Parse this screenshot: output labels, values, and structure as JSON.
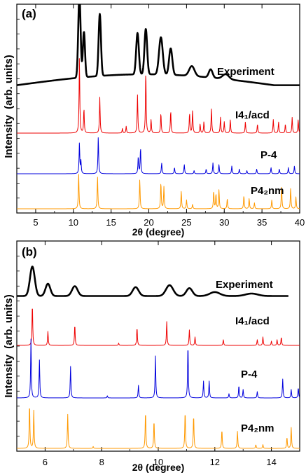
{
  "figure": {
    "ylabel_main": "Intensity",
    "ylabel_unit": "(arb. units)"
  },
  "chart_data": [
    {
      "type": "line",
      "panel_label": "(a)",
      "xlabel": "2θ  (degree)",
      "xlim": [
        2.5,
        40
      ],
      "xticks": [
        5,
        10,
        15,
        20,
        25,
        30,
        35,
        40
      ],
      "grid": false,
      "series": [
        {
          "name": "Experiment",
          "color": "#000000",
          "kind": "broad",
          "baseline": 0.22,
          "peaks": [
            [
              10.8,
              1.0,
              0.22
            ],
            [
              11.4,
              0.55,
              0.2
            ],
            [
              13.5,
              0.75,
              0.22
            ],
            [
              18.5,
              0.5,
              0.25
            ],
            [
              19.6,
              0.55,
              0.25
            ],
            [
              21.6,
              0.45,
              0.35
            ],
            [
              22.9,
              0.32,
              0.3
            ],
            [
              25.7,
              0.12,
              0.5
            ],
            [
              28.2,
              0.1,
              0.35
            ],
            [
              30.2,
              0.06,
              0.6
            ]
          ]
        },
        {
          "name": "I4₁/acd",
          "color": "#ee0000",
          "kind": "sharp",
          "peaks": [
            [
              10.8,
              1.7
            ],
            [
              11.4,
              0.55
            ],
            [
              13.5,
              0.8
            ],
            [
              16.5,
              0.1
            ],
            [
              17.0,
              0.15
            ],
            [
              18.5,
              0.85
            ],
            [
              19.6,
              1.4
            ],
            [
              20.3,
              0.3
            ],
            [
              21.6,
              0.45
            ],
            [
              22.9,
              0.5
            ],
            [
              25.4,
              0.45
            ],
            [
              25.8,
              0.5
            ],
            [
              26.8,
              0.2
            ],
            [
              27.3,
              0.25
            ],
            [
              28.3,
              0.55
            ],
            [
              29.5,
              0.35
            ],
            [
              30.0,
              0.25
            ],
            [
              30.8,
              0.3
            ],
            [
              32.8,
              0.25
            ],
            [
              34.4,
              0.2
            ],
            [
              36.5,
              0.3
            ],
            [
              37.2,
              0.25
            ],
            [
              38.1,
              0.2
            ],
            [
              39.0,
              0.35
            ],
            [
              39.8,
              0.3
            ]
          ]
        },
        {
          "name": "P-4",
          "color": "#0000dd",
          "kind": "sharp",
          "peaks": [
            [
              10.8,
              1.0
            ],
            [
              11.0,
              0.4
            ],
            [
              13.3,
              1.2
            ],
            [
              18.6,
              0.55
            ],
            [
              18.9,
              0.85
            ],
            [
              21.7,
              0.35
            ],
            [
              23.4,
              0.2
            ],
            [
              24.7,
              0.3
            ],
            [
              26.0,
              0.1
            ],
            [
              27.6,
              0.15
            ],
            [
              28.5,
              0.35
            ],
            [
              29.3,
              0.3
            ],
            [
              31.0,
              0.25
            ],
            [
              32.0,
              0.15
            ],
            [
              33.0,
              0.1
            ],
            [
              34.3,
              0.15
            ],
            [
              36.2,
              0.2
            ],
            [
              37.3,
              0.15
            ],
            [
              38.5,
              0.2
            ],
            [
              39.3,
              0.25
            ]
          ]
        },
        {
          "name": "P4₂nm",
          "color": "#ff9900",
          "kind": "sharp",
          "peaks": [
            [
              10.7,
              1.2
            ],
            [
              13.2,
              1.1
            ],
            [
              18.8,
              1.0
            ],
            [
              21.6,
              0.9
            ],
            [
              22.0,
              0.75
            ],
            [
              24.3,
              0.6
            ],
            [
              25.0,
              0.3
            ],
            [
              25.8,
              0.15
            ],
            [
              28.6,
              0.6
            ],
            [
              28.9,
              0.5
            ],
            [
              29.3,
              0.65
            ],
            [
              30.4,
              0.35
            ],
            [
              32.6,
              0.45
            ],
            [
              33.3,
              0.35
            ],
            [
              34.0,
              0.2
            ],
            [
              36.3,
              0.3
            ],
            [
              37.6,
              0.8
            ],
            [
              38.8,
              0.7
            ],
            [
              39.5,
              0.4
            ]
          ]
        }
      ]
    },
    {
      "type": "line",
      "panel_label": "(b)",
      "xlabel": "2θ  (degree)",
      "xlim": [
        5,
        15
      ],
      "xticks": [
        6,
        8,
        10,
        12,
        14
      ],
      "grid": false,
      "series": [
        {
          "name": "Experiment",
          "color": "#000000",
          "kind": "broad",
          "baseline": 0.15,
          "peaks": [
            [
              5.55,
              0.6,
              0.12
            ],
            [
              6.1,
              0.25,
              0.12
            ],
            [
              7.05,
              0.2,
              0.14
            ],
            [
              9.2,
              0.18,
              0.15
            ],
            [
              10.4,
              0.22,
              0.18
            ],
            [
              11.1,
              0.16,
              0.15
            ],
            [
              12.0,
              0.08,
              0.25
            ],
            [
              13.3,
              0.05,
              0.3
            ]
          ]
        },
        {
          "name": "I4₁/acd",
          "color": "#ee0000",
          "kind": "sharp",
          "peaks": [
            [
              5.55,
              1.5
            ],
            [
              6.1,
              0.5
            ],
            [
              7.05,
              0.75
            ],
            [
              8.6,
              0.08
            ],
            [
              9.25,
              0.65
            ],
            [
              10.3,
              0.85
            ],
            [
              11.1,
              0.55
            ],
            [
              11.3,
              0.3
            ],
            [
              12.3,
              0.2
            ],
            [
              13.5,
              0.2
            ],
            [
              13.7,
              0.3
            ],
            [
              14.0,
              0.15
            ],
            [
              14.2,
              0.2
            ],
            [
              14.35,
              0.3
            ]
          ]
        },
        {
          "name": "P-4",
          "color": "#0000dd",
          "kind": "sharp",
          "peaks": [
            [
              5.5,
              1.4
            ],
            [
              5.8,
              0.9
            ],
            [
              6.9,
              0.75
            ],
            [
              8.2,
              0.05
            ],
            [
              9.3,
              0.3
            ],
            [
              9.9,
              1.0
            ],
            [
              11.05,
              1.3
            ],
            [
              11.6,
              0.4
            ],
            [
              11.8,
              0.4
            ],
            [
              12.5,
              0.1
            ],
            [
              12.85,
              0.3
            ],
            [
              13.0,
              0.2
            ],
            [
              13.5,
              0.15
            ],
            [
              14.4,
              0.45
            ],
            [
              14.7,
              0.2
            ],
            [
              14.95,
              0.25
            ]
          ]
        },
        {
          "name": "P4₂nm",
          "color": "#ff9900",
          "kind": "sharp",
          "peaks": [
            [
              5.45,
              1.2
            ],
            [
              5.6,
              1.0
            ],
            [
              6.8,
              0.9
            ],
            [
              7.7,
              0.05
            ],
            [
              9.55,
              1.0
            ],
            [
              9.85,
              0.75
            ],
            [
              10.95,
              1.0
            ],
            [
              11.25,
              0.9
            ],
            [
              12.25,
              0.5
            ],
            [
              12.8,
              0.45
            ],
            [
              13.45,
              0.1
            ],
            [
              13.7,
              0.1
            ],
            [
              14.55,
              0.3
            ],
            [
              14.7,
              0.55
            ]
          ]
        }
      ]
    }
  ]
}
